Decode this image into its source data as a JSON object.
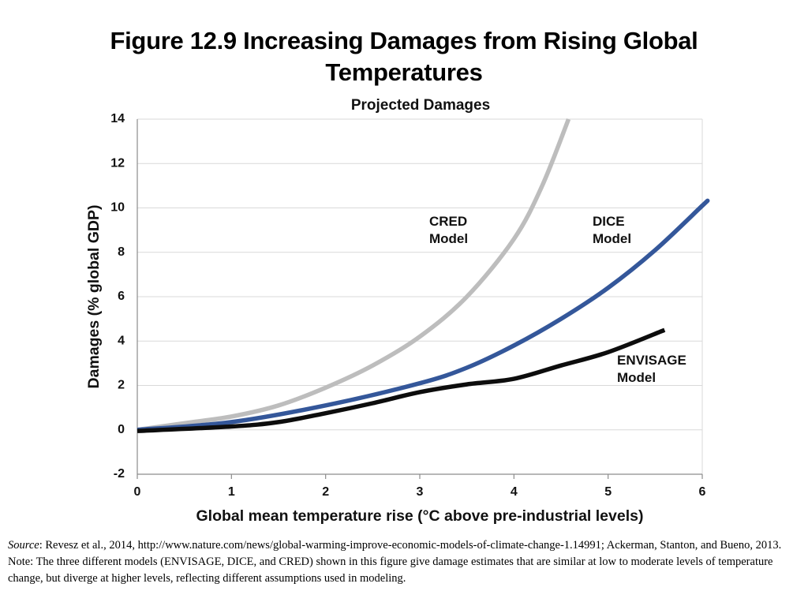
{
  "figure_title": "Figure 12.9 Increasing Damages from Rising Global Temperatures",
  "chart_data": {
    "type": "line",
    "title": "Projected Damages",
    "x_label": "Global mean temperature rise (°C above pre-industrial levels)",
    "y_label": "Damages (% global GDP)",
    "xlim": [
      0,
      6
    ],
    "xticks": [
      0,
      1,
      2,
      3,
      4,
      5,
      6
    ],
    "ylim": [
      -2,
      14
    ],
    "yticks": [
      -2,
      0,
      2,
      4,
      6,
      8,
      10,
      12,
      14
    ],
    "grid": true,
    "series": [
      {
        "name": "CRED Model",
        "color": "#bdbdbd",
        "x": [
          0,
          0.5,
          1,
          1.5,
          2,
          2.5,
          3,
          3.5,
          4,
          4.3,
          4.58
        ],
        "values": [
          0,
          0.3,
          0.6,
          1.1,
          1.9,
          2.9,
          4.2,
          6.0,
          8.6,
          11,
          14
        ]
      },
      {
        "name": "DICE Model",
        "color": "#34579a",
        "x": [
          0,
          1,
          2,
          3,
          3.5,
          4,
          4.5,
          5,
          5.5,
          6,
          6.05
        ],
        "values": [
          0,
          0.35,
          1.1,
          2.1,
          2.8,
          3.8,
          5.0,
          6.4,
          8.1,
          10.1,
          10.3
        ]
      },
      {
        "name": "ENVISAGE Model",
        "color": "#0d0d0d",
        "x": [
          0,
          1,
          1.5,
          2,
          2.5,
          3,
          3.5,
          4,
          4.5,
          5,
          5.6
        ],
        "values": [
          -0.05,
          0.15,
          0.35,
          0.75,
          1.2,
          1.7,
          2.05,
          2.3,
          2.9,
          3.5,
          4.5
        ]
      }
    ]
  },
  "source_label": "Source",
  "source_text": ": Revesz et al., 2014, http://www.nature.com/news/global-warming-improve-economic-models-of-climate-change-1.14991; Ackerman, Stanton, and Bueno, 2013.",
  "note": "Note: The three different models (ENVISAGE, DICE, and CRED) shown in this figure give damage estimates that are similar at low to moderate levels of temperature change, but diverge at higher levels, reflecting different assumptions used in modeling."
}
